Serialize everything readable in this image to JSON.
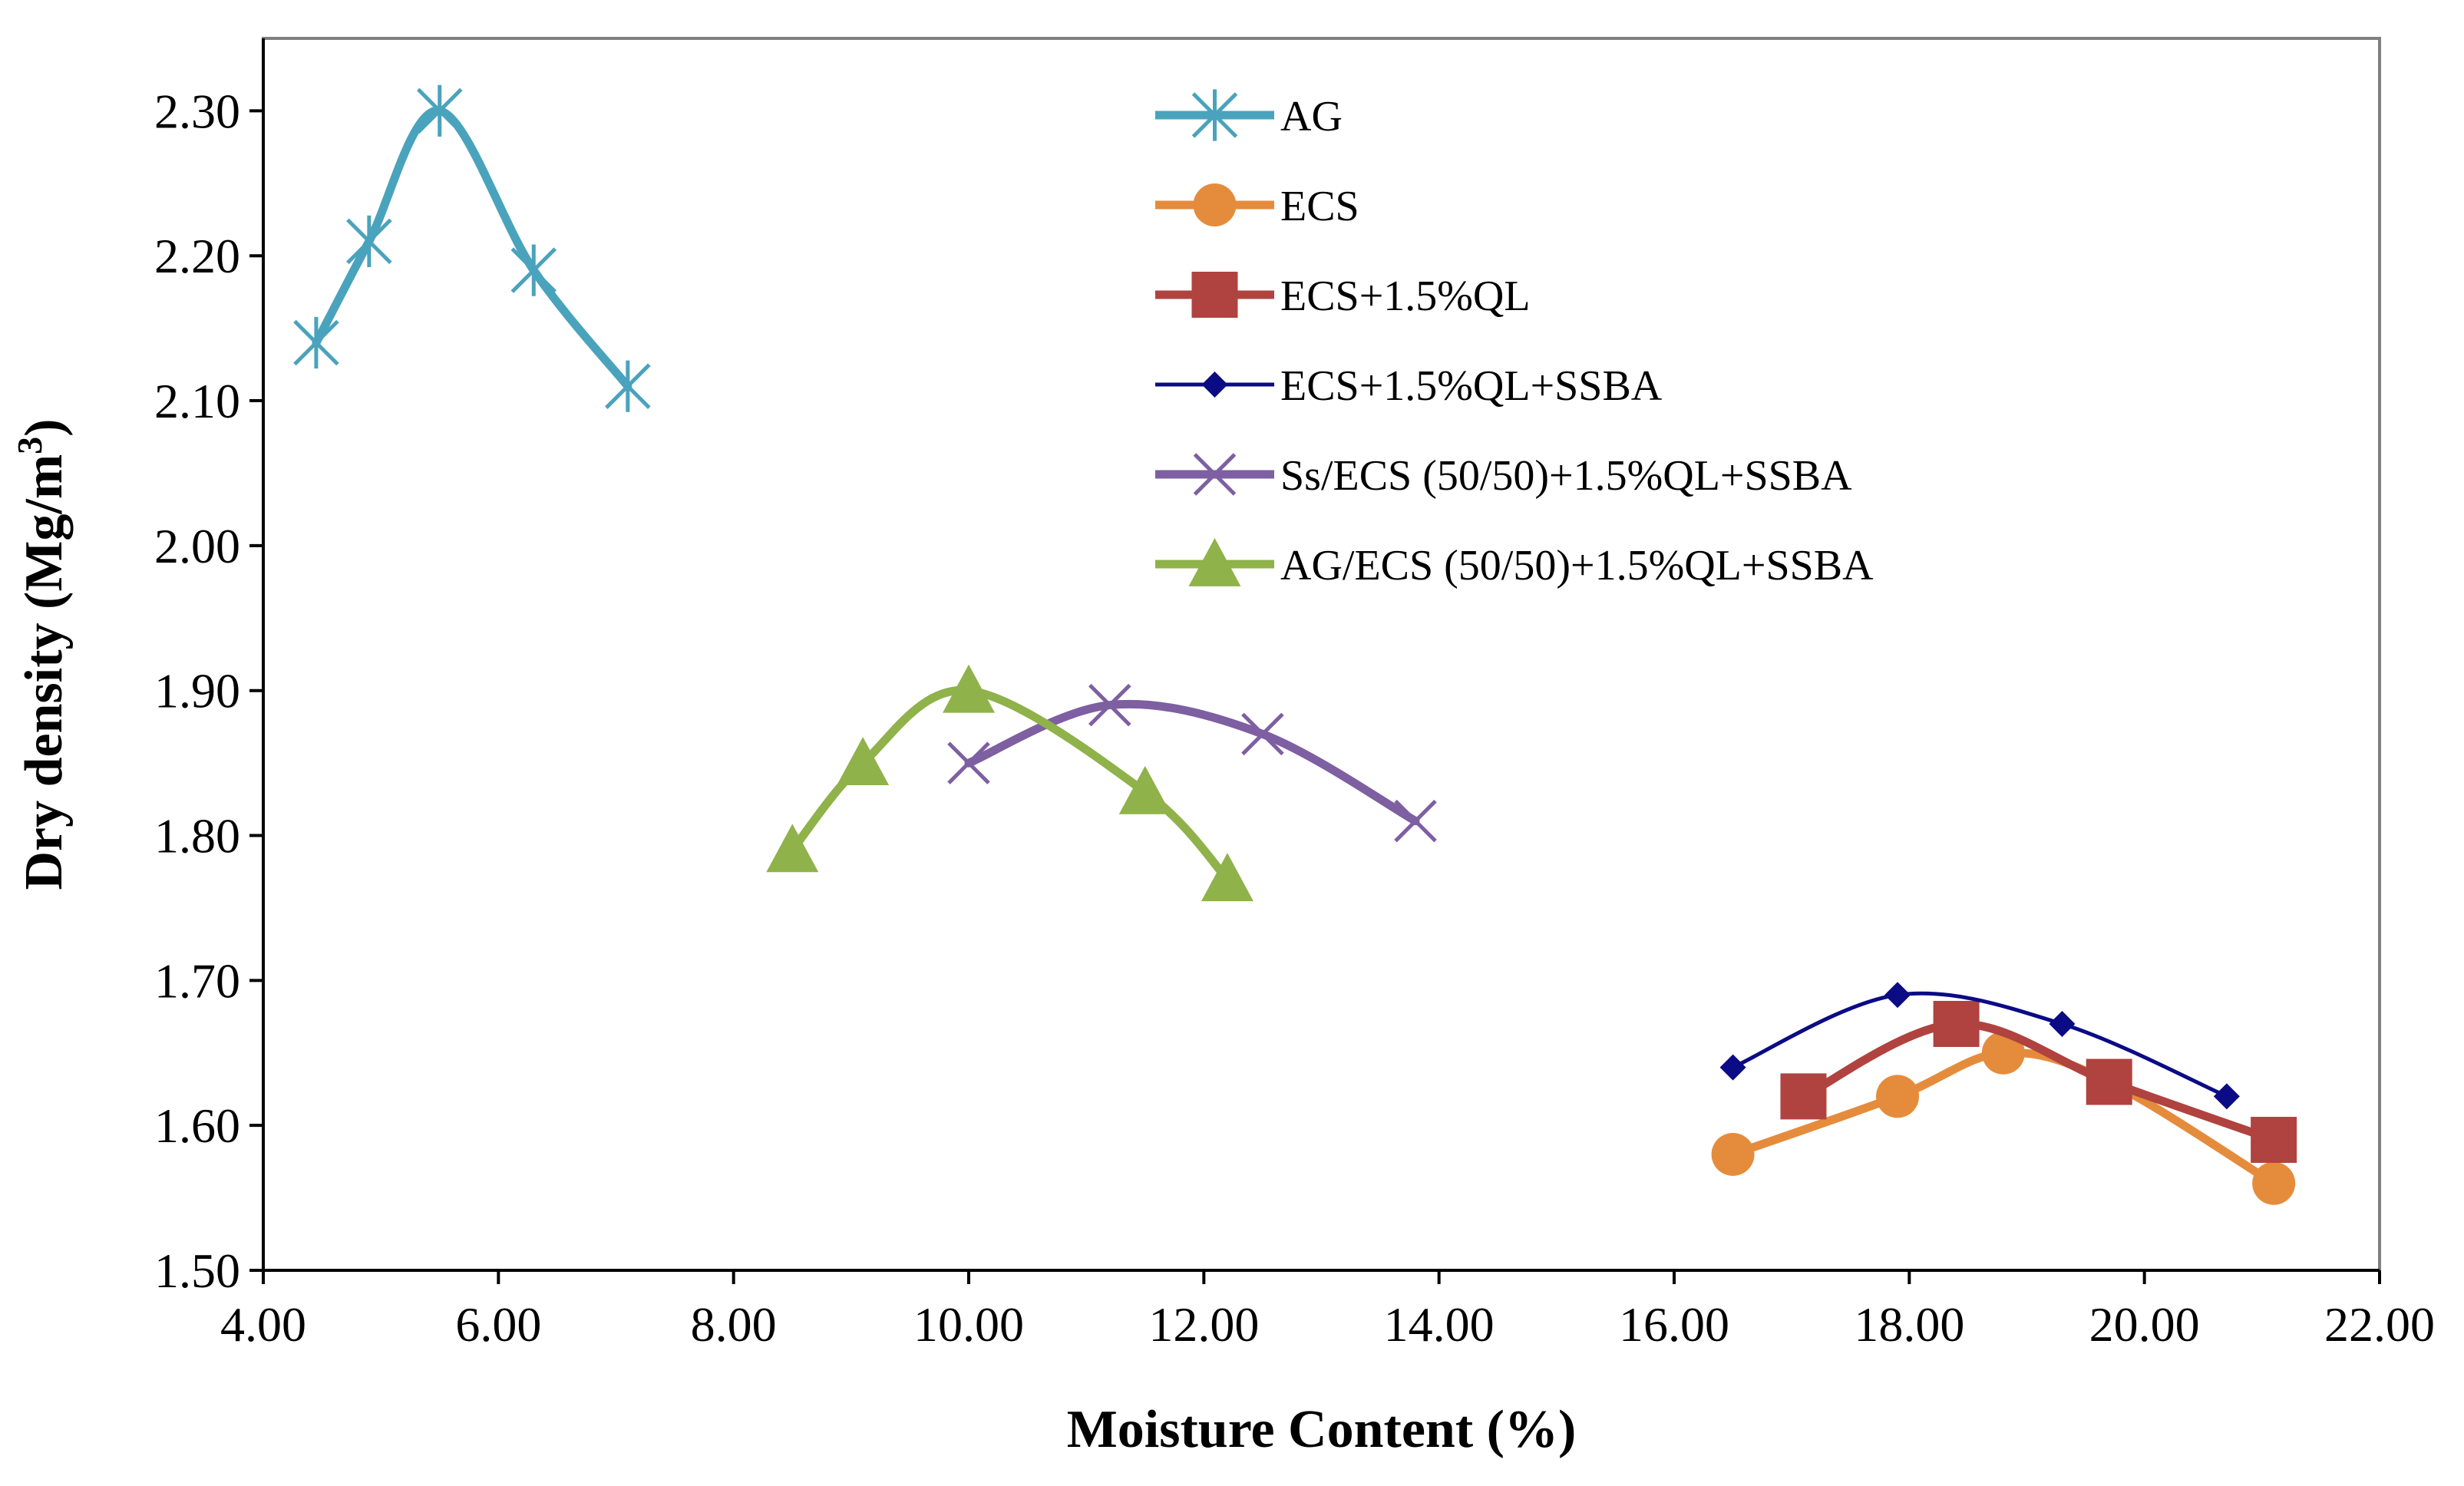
{
  "chart_data": {
    "type": "line",
    "xlabel": "Moisture Content (%)",
    "ylabel_main": "Dry density (Mg/m",
    "ylabel_sup": "3",
    "ylabel_end": ")",
    "xlim": [
      4,
      22
    ],
    "ylim": [
      1.5,
      2.35
    ],
    "xticks": [
      4,
      6,
      8,
      10,
      12,
      14,
      16,
      18,
      20,
      22
    ],
    "yticks": [
      1.5,
      1.6,
      1.7,
      1.8,
      1.9,
      2.0,
      2.1,
      2.2,
      2.3
    ],
    "xtick_labels": [
      "4.00",
      "6.00",
      "8.00",
      "10.00",
      "12.00",
      "14.00",
      "16.00",
      "18.00",
      "20.00",
      "22.00"
    ],
    "ytick_labels": [
      "1.50",
      "1.60",
      "1.70",
      "1.80",
      "1.90",
      "2.00",
      "2.10",
      "2.20",
      "2.30"
    ],
    "legend_position": "top-center",
    "series": [
      {
        "name": "AG",
        "color": "#4aa3bc",
        "marker": "asterisk",
        "line": "thick",
        "x": [
          4.45,
          4.9,
          5.5,
          6.3,
          7.1
        ],
        "y": [
          2.14,
          2.21,
          2.3,
          2.19,
          2.11
        ]
      },
      {
        "name": "ECS",
        "color": "#e58c3c",
        "marker": "circle",
        "line": "thick",
        "x": [
          16.5,
          17.9,
          18.8,
          19.7,
          21.1
        ],
        "y": [
          1.58,
          1.62,
          1.65,
          1.63,
          1.56
        ]
      },
      {
        "name": "ECS+1.5%QL",
        "color": "#b0433f",
        "marker": "square",
        "line": "thick",
        "x": [
          17.1,
          18.4,
          19.7,
          21.1
        ],
        "y": [
          1.62,
          1.67,
          1.63,
          1.59
        ]
      },
      {
        "name": "ECS+1.5%QL+SSBA",
        "color": "#0b0b86",
        "marker": "diamond",
        "line": "thin",
        "x": [
          16.5,
          17.9,
          19.3,
          20.7
        ],
        "y": [
          1.64,
          1.69,
          1.67,
          1.62
        ]
      },
      {
        "name": "Ss/ECS (50/50)+1.5%QL+SSBA",
        "color": "#7e5fa2",
        "marker": "x",
        "line": "thick",
        "x": [
          10.0,
          11.2,
          12.5,
          13.8
        ],
        "y": [
          1.85,
          1.89,
          1.87,
          1.81
        ]
      },
      {
        "name": "AG/ECS (50/50)+1.5%QL+SSBA",
        "color": "#8fb24a",
        "marker": "triangle",
        "line": "thick",
        "x": [
          8.5,
          9.1,
          10.0,
          11.5,
          12.2
        ],
        "y": [
          1.79,
          1.85,
          1.9,
          1.83,
          1.77
        ]
      }
    ]
  }
}
